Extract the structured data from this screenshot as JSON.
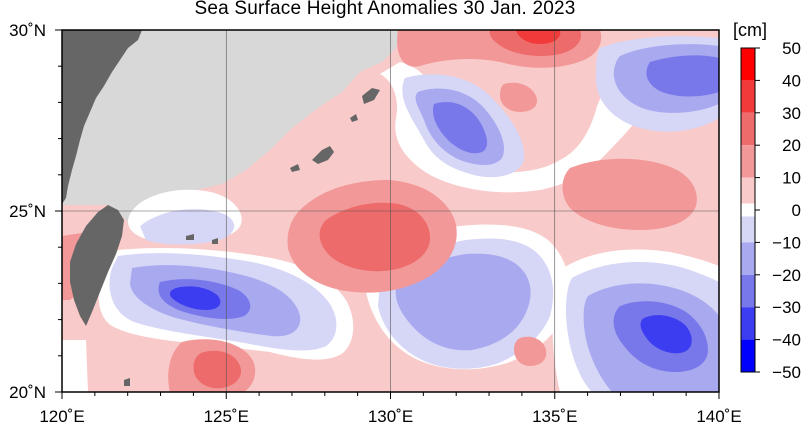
{
  "title": "Sea Surface Height Anomalies  30 Jan. 2023",
  "map": {
    "lon_range": [
      120,
      140
    ],
    "lat_range": [
      20,
      30
    ],
    "lon_ticks": [
      {
        "value": 120,
        "label": "120˚E"
      },
      {
        "value": 125,
        "label": "125˚E"
      },
      {
        "value": 130,
        "label": "130˚E"
      },
      {
        "value": 135,
        "label": "135˚E"
      },
      {
        "value": 140,
        "label": "140˚E"
      }
    ],
    "lat_ticks": [
      {
        "value": 20,
        "label": "20˚N"
      },
      {
        "value": 25,
        "label": "25˚N"
      },
      {
        "value": 30,
        "label": "30˚N"
      }
    ],
    "grid": true
  },
  "colorbar": {
    "unit": "[cm]",
    "min": -50,
    "max": 50,
    "labels": [
      "50",
      "40",
      "30",
      "20",
      "10",
      "0",
      "−10",
      "−20",
      "−30",
      "−40",
      "−50"
    ],
    "bins": [
      {
        "from": 40,
        "to": 50,
        "color": "#ff0000"
      },
      {
        "from": 30,
        "to": 40,
        "color": "#f23a3a"
      },
      {
        "from": 20,
        "to": 30,
        "color": "#ee6b6b"
      },
      {
        "from": 10,
        "to": 20,
        "color": "#f29898"
      },
      {
        "from": 2,
        "to": 10,
        "color": "#f9caca"
      },
      {
        "from": -2,
        "to": 2,
        "color": "#ffffff"
      },
      {
        "from": -10,
        "to": -2,
        "color": "#d6d6f7"
      },
      {
        "from": -20,
        "to": -10,
        "color": "#a9a9f0"
      },
      {
        "from": -30,
        "to": -20,
        "color": "#7878ea"
      },
      {
        "from": -40,
        "to": -30,
        "color": "#3c3cf0"
      },
      {
        "from": -50,
        "to": -40,
        "color": "#0000ff"
      }
    ]
  },
  "colors": {
    "land": "#666666",
    "land_mask": "#d8d8d8",
    "sea_default": "#f9caca"
  }
}
